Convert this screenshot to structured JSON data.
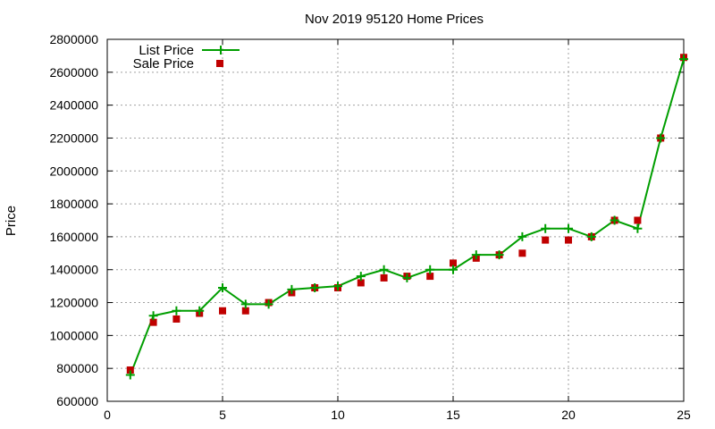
{
  "chart_data": {
    "type": "line",
    "title": "Nov 2019 95120 Home Prices",
    "xlabel": "",
    "ylabel": "Price",
    "xlim": [
      0,
      25
    ],
    "ylim": [
      600000,
      2800000
    ],
    "x_ticks": [
      0,
      5,
      10,
      15,
      20,
      25
    ],
    "y_ticks": [
      600000,
      800000,
      1000000,
      1200000,
      1400000,
      1600000,
      1800000,
      2000000,
      2200000,
      2400000,
      2600000,
      2800000
    ],
    "grid": true,
    "legend_position": "top-left",
    "colors": {
      "list": "#009e00",
      "sale": "#c00000"
    },
    "series": [
      {
        "name": "List Price",
        "style": "line+cross",
        "x": [
          1,
          2,
          3,
          4,
          5,
          6,
          7,
          8,
          9,
          10,
          11,
          12,
          13,
          14,
          15,
          16,
          17,
          18,
          19,
          20,
          21,
          22,
          23,
          24,
          25
        ],
        "y": [
          760000,
          1120000,
          1150000,
          1150000,
          1290000,
          1190000,
          1190000,
          1280000,
          1290000,
          1300000,
          1360000,
          1400000,
          1350000,
          1400000,
          1400000,
          1490000,
          1490000,
          1600000,
          1650000,
          1650000,
          1600000,
          1700000,
          1650000,
          2200000,
          2680000
        ]
      },
      {
        "name": "Sale Price",
        "style": "square",
        "x": [
          1,
          2,
          3,
          4,
          5,
          6,
          7,
          8,
          9,
          10,
          11,
          12,
          13,
          14,
          15,
          16,
          17,
          18,
          19,
          20,
          21,
          22,
          23,
          24,
          25
        ],
        "y": [
          790000,
          1080000,
          1100000,
          1135000,
          1150000,
          1150000,
          1200000,
          1260000,
          1290000,
          1290000,
          1320000,
          1350000,
          1360000,
          1360000,
          1440000,
          1470000,
          1490000,
          1500000,
          1580000,
          1580000,
          1600000,
          1700000,
          1700000,
          2200000,
          2690000
        ]
      }
    ]
  }
}
